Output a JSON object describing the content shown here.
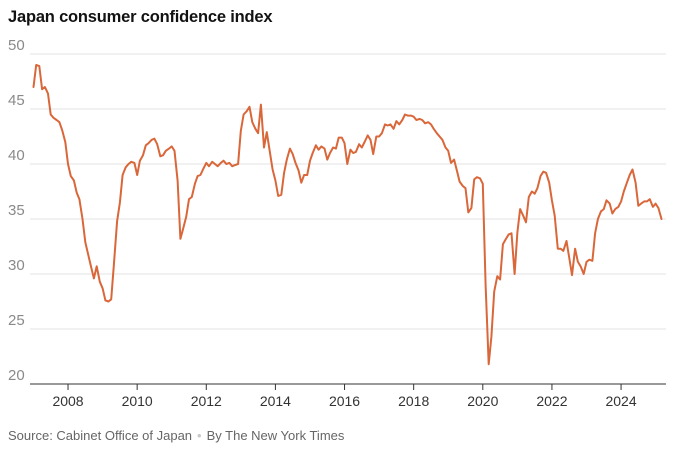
{
  "chart_data": {
    "type": "line",
    "title": "Japan consumer confidence index",
    "ylim": [
      20,
      50
    ],
    "xlim": [
      2006.9,
      2025.3
    ],
    "yticks": [
      20,
      25,
      30,
      35,
      40,
      45,
      50
    ],
    "xticks": [
      2008,
      2010,
      2012,
      2014,
      2016,
      2018,
      2020,
      2022,
      2024
    ],
    "grid": "horizontal",
    "legend": "none",
    "series": [
      {
        "color": "#d9673a",
        "points": [
          [
            2007.0,
            47.0
          ],
          [
            2007.08,
            49.0
          ],
          [
            2007.17,
            48.9
          ],
          [
            2007.25,
            46.8
          ],
          [
            2007.33,
            47.0
          ],
          [
            2007.42,
            46.4
          ],
          [
            2007.5,
            44.5
          ],
          [
            2007.58,
            44.2
          ],
          [
            2007.67,
            44.0
          ],
          [
            2007.75,
            43.8
          ],
          [
            2007.83,
            43.1
          ],
          [
            2007.92,
            42.0
          ],
          [
            2008.0,
            40.0
          ],
          [
            2008.08,
            38.9
          ],
          [
            2008.17,
            38.5
          ],
          [
            2008.25,
            37.4
          ],
          [
            2008.33,
            36.8
          ],
          [
            2008.42,
            35.0
          ],
          [
            2008.5,
            32.9
          ],
          [
            2008.58,
            31.8
          ],
          [
            2008.67,
            30.6
          ],
          [
            2008.75,
            29.6
          ],
          [
            2008.83,
            30.7
          ],
          [
            2008.92,
            29.3
          ],
          [
            2009.0,
            28.7
          ],
          [
            2009.08,
            27.6
          ],
          [
            2009.17,
            27.5
          ],
          [
            2009.25,
            27.7
          ],
          [
            2009.33,
            31.0
          ],
          [
            2009.42,
            34.8
          ],
          [
            2009.5,
            36.5
          ],
          [
            2009.58,
            39.0
          ],
          [
            2009.67,
            39.7
          ],
          [
            2009.75,
            40.0
          ],
          [
            2009.83,
            40.2
          ],
          [
            2009.92,
            40.1
          ],
          [
            2010.0,
            39.0
          ],
          [
            2010.08,
            40.3
          ],
          [
            2010.17,
            40.8
          ],
          [
            2010.25,
            41.7
          ],
          [
            2010.33,
            41.9
          ],
          [
            2010.42,
            42.2
          ],
          [
            2010.5,
            42.3
          ],
          [
            2010.58,
            41.8
          ],
          [
            2010.67,
            40.7
          ],
          [
            2010.75,
            40.8
          ],
          [
            2010.83,
            41.2
          ],
          [
            2010.92,
            41.4
          ],
          [
            2011.0,
            41.6
          ],
          [
            2011.08,
            41.2
          ],
          [
            2011.17,
            38.5
          ],
          [
            2011.25,
            33.2
          ],
          [
            2011.33,
            34.1
          ],
          [
            2011.42,
            35.2
          ],
          [
            2011.5,
            36.8
          ],
          [
            2011.58,
            37.0
          ],
          [
            2011.67,
            38.2
          ],
          [
            2011.75,
            38.9
          ],
          [
            2011.83,
            39.0
          ],
          [
            2011.92,
            39.6
          ],
          [
            2012.0,
            40.1
          ],
          [
            2012.08,
            39.8
          ],
          [
            2012.17,
            40.2
          ],
          [
            2012.25,
            40.0
          ],
          [
            2012.33,
            39.8
          ],
          [
            2012.42,
            40.1
          ],
          [
            2012.5,
            40.3
          ],
          [
            2012.58,
            40.0
          ],
          [
            2012.67,
            40.1
          ],
          [
            2012.75,
            39.8
          ],
          [
            2012.83,
            39.9
          ],
          [
            2012.92,
            40.0
          ],
          [
            2013.0,
            43.0
          ],
          [
            2013.08,
            44.5
          ],
          [
            2013.17,
            44.8
          ],
          [
            2013.25,
            45.2
          ],
          [
            2013.33,
            43.8
          ],
          [
            2013.42,
            43.2
          ],
          [
            2013.5,
            42.8
          ],
          [
            2013.58,
            45.4
          ],
          [
            2013.67,
            41.5
          ],
          [
            2013.75,
            42.9
          ],
          [
            2013.83,
            41.3
          ],
          [
            2013.92,
            39.5
          ],
          [
            2014.0,
            38.5
          ],
          [
            2014.08,
            37.1
          ],
          [
            2014.17,
            37.2
          ],
          [
            2014.25,
            39.2
          ],
          [
            2014.33,
            40.4
          ],
          [
            2014.42,
            41.4
          ],
          [
            2014.5,
            40.9
          ],
          [
            2014.58,
            40.1
          ],
          [
            2014.67,
            39.4
          ],
          [
            2014.75,
            38.3
          ],
          [
            2014.83,
            39.0
          ],
          [
            2014.92,
            39.0
          ],
          [
            2015.0,
            40.3
          ],
          [
            2015.08,
            41.0
          ],
          [
            2015.17,
            41.7
          ],
          [
            2015.25,
            41.3
          ],
          [
            2015.33,
            41.6
          ],
          [
            2015.42,
            41.4
          ],
          [
            2015.5,
            40.4
          ],
          [
            2015.58,
            41.0
          ],
          [
            2015.67,
            41.5
          ],
          [
            2015.75,
            41.4
          ],
          [
            2015.83,
            42.4
          ],
          [
            2015.92,
            42.4
          ],
          [
            2016.0,
            41.9
          ],
          [
            2016.08,
            40.0
          ],
          [
            2016.17,
            41.3
          ],
          [
            2016.25,
            41.0
          ],
          [
            2016.33,
            41.1
          ],
          [
            2016.42,
            41.8
          ],
          [
            2016.5,
            41.5
          ],
          [
            2016.58,
            42.0
          ],
          [
            2016.67,
            42.6
          ],
          [
            2016.75,
            42.2
          ],
          [
            2016.83,
            40.9
          ],
          [
            2016.92,
            42.5
          ],
          [
            2017.0,
            42.5
          ],
          [
            2017.08,
            42.8
          ],
          [
            2017.17,
            43.6
          ],
          [
            2017.25,
            43.5
          ],
          [
            2017.33,
            43.6
          ],
          [
            2017.42,
            43.2
          ],
          [
            2017.5,
            43.9
          ],
          [
            2017.58,
            43.6
          ],
          [
            2017.67,
            44.0
          ],
          [
            2017.75,
            44.5
          ],
          [
            2017.83,
            44.4
          ],
          [
            2017.92,
            44.4
          ],
          [
            2018.0,
            44.3
          ],
          [
            2018.08,
            44.0
          ],
          [
            2018.17,
            44.1
          ],
          [
            2018.25,
            44.0
          ],
          [
            2018.33,
            43.7
          ],
          [
            2018.42,
            43.8
          ],
          [
            2018.5,
            43.6
          ],
          [
            2018.58,
            43.2
          ],
          [
            2018.67,
            42.8
          ],
          [
            2018.75,
            42.5
          ],
          [
            2018.83,
            42.2
          ],
          [
            2018.92,
            41.5
          ],
          [
            2019.0,
            41.2
          ],
          [
            2019.08,
            40.1
          ],
          [
            2019.17,
            40.4
          ],
          [
            2019.25,
            39.4
          ],
          [
            2019.33,
            38.4
          ],
          [
            2019.42,
            38.0
          ],
          [
            2019.5,
            37.8
          ],
          [
            2019.58,
            35.6
          ],
          [
            2019.67,
            36.0
          ],
          [
            2019.75,
            38.6
          ],
          [
            2019.83,
            38.8
          ],
          [
            2019.92,
            38.7
          ],
          [
            2020.0,
            38.2
          ],
          [
            2020.08,
            29.0
          ],
          [
            2020.17,
            21.8
          ],
          [
            2020.25,
            24.3
          ],
          [
            2020.33,
            28.4
          ],
          [
            2020.42,
            29.8
          ],
          [
            2020.5,
            29.5
          ],
          [
            2020.58,
            32.7
          ],
          [
            2020.67,
            33.2
          ],
          [
            2020.75,
            33.6
          ],
          [
            2020.83,
            33.7
          ],
          [
            2020.92,
            30.0
          ],
          [
            2021.0,
            33.8
          ],
          [
            2021.08,
            35.9
          ],
          [
            2021.17,
            35.3
          ],
          [
            2021.25,
            34.7
          ],
          [
            2021.33,
            37.0
          ],
          [
            2021.42,
            37.5
          ],
          [
            2021.5,
            37.3
          ],
          [
            2021.58,
            37.8
          ],
          [
            2021.67,
            38.9
          ],
          [
            2021.75,
            39.3
          ],
          [
            2021.83,
            39.2
          ],
          [
            2021.92,
            38.3
          ],
          [
            2022.0,
            36.7
          ],
          [
            2022.08,
            35.3
          ],
          [
            2022.17,
            32.3
          ],
          [
            2022.25,
            32.3
          ],
          [
            2022.33,
            32.1
          ],
          [
            2022.42,
            33.0
          ],
          [
            2022.5,
            31.5
          ],
          [
            2022.58,
            29.9
          ],
          [
            2022.67,
            32.3
          ],
          [
            2022.75,
            31.1
          ],
          [
            2022.83,
            30.7
          ],
          [
            2022.92,
            30.0
          ],
          [
            2023.0,
            31.1
          ],
          [
            2023.08,
            31.3
          ],
          [
            2023.17,
            31.2
          ],
          [
            2023.25,
            33.7
          ],
          [
            2023.33,
            35.0
          ],
          [
            2023.42,
            35.7
          ],
          [
            2023.5,
            35.9
          ],
          [
            2023.58,
            36.7
          ],
          [
            2023.67,
            36.4
          ],
          [
            2023.75,
            35.5
          ],
          [
            2023.83,
            35.9
          ],
          [
            2023.92,
            36.1
          ],
          [
            2024.0,
            36.6
          ],
          [
            2024.08,
            37.5
          ],
          [
            2024.17,
            38.3
          ],
          [
            2024.25,
            39.0
          ],
          [
            2024.33,
            39.5
          ],
          [
            2024.42,
            38.3
          ],
          [
            2024.5,
            36.2
          ],
          [
            2024.58,
            36.4
          ],
          [
            2024.67,
            36.6
          ],
          [
            2024.75,
            36.6
          ],
          [
            2024.83,
            36.8
          ],
          [
            2024.92,
            36.1
          ],
          [
            2025.0,
            36.4
          ],
          [
            2025.08,
            36.0
          ],
          [
            2025.17,
            35.0
          ]
        ]
      }
    ]
  },
  "footer": {
    "source": "Source: Cabinet Office of Japan",
    "separator": "•",
    "credit": "By The New York Times"
  }
}
